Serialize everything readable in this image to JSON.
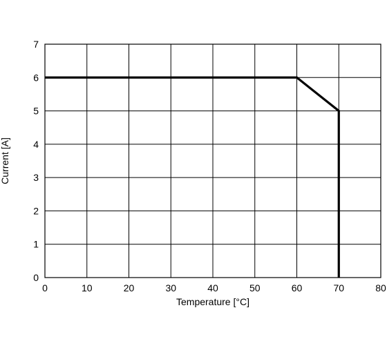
{
  "chart_data": {
    "type": "line",
    "title": "",
    "xlabel": "Temperature [°C]",
    "ylabel": "Current [A]",
    "xlim": [
      0,
      80
    ],
    "ylim": [
      0,
      7
    ],
    "xticks": [
      "0",
      "10",
      "20",
      "30",
      "40",
      "50",
      "60",
      "70",
      "80"
    ],
    "yticks": [
      "0",
      "1",
      "2",
      "3",
      "4",
      "5",
      "6",
      "7"
    ],
    "grid": true,
    "legend": "none",
    "series": [
      {
        "x": [
          0,
          60,
          70,
          70
        ],
        "y": [
          6,
          6,
          5,
          0
        ],
        "color": "#000000"
      }
    ]
  }
}
